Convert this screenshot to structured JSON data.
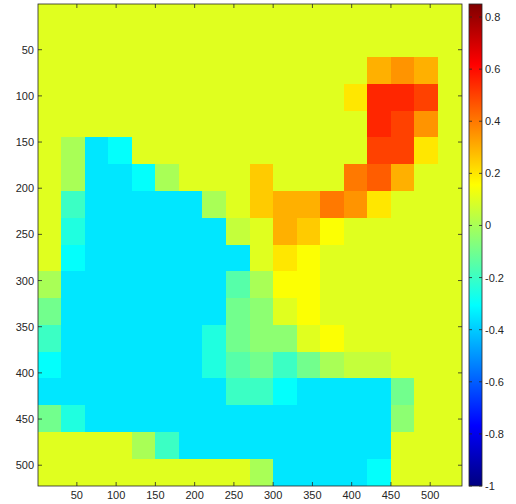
{
  "chart_data": {
    "type": "heatmap",
    "x": [
      15,
      45,
      75,
      105,
      135,
      165,
      195,
      225,
      255,
      285,
      315,
      345,
      375,
      405,
      435,
      465,
      495,
      525
    ],
    "y": [
      14.5,
      43.5,
      72.5,
      101.5,
      130.5,
      159.5,
      188.5,
      217.5,
      246.5,
      275.5,
      304.5,
      333.5,
      362.5,
      391.5,
      420.5,
      449.5,
      478.5,
      507.5
    ],
    "values": [
      [
        0.1,
        0.1,
        0.1,
        0.1,
        0.1,
        0.1,
        0.1,
        0.1,
        0.1,
        0.1,
        0.1,
        0.1,
        0.1,
        0.1,
        0.1,
        0.1,
        0.1,
        0.1
      ],
      [
        0.1,
        0.1,
        0.1,
        0.1,
        0.1,
        0.1,
        0.1,
        0.1,
        0.1,
        0.1,
        0.1,
        0.1,
        0.1,
        0.1,
        0.1,
        0.1,
        0.1,
        0.1
      ],
      [
        0.1,
        0.1,
        0.1,
        0.1,
        0.1,
        0.1,
        0.1,
        0.1,
        0.1,
        0.1,
        0.1,
        0.1,
        0.1,
        0.1,
        0.3,
        0.35,
        0.3,
        0.1
      ],
      [
        0.1,
        0.1,
        0.1,
        0.1,
        0.1,
        0.1,
        0.1,
        0.1,
        0.1,
        0.1,
        0.1,
        0.1,
        0.1,
        0.2,
        0.55,
        0.55,
        0.5,
        0.1
      ],
      [
        0.1,
        0.1,
        0.1,
        0.1,
        0.1,
        0.1,
        0.1,
        0.1,
        0.1,
        0.1,
        0.1,
        0.1,
        0.1,
        0.1,
        0.55,
        0.5,
        0.35,
        0.1
      ],
      [
        0.1,
        0.0,
        -0.35,
        -0.3,
        0.1,
        0.1,
        0.1,
        0.1,
        0.1,
        0.1,
        0.1,
        0.1,
        0.1,
        0.1,
        0.5,
        0.5,
        0.2,
        0.1
      ],
      [
        0.1,
        0.0,
        -0.35,
        -0.35,
        -0.3,
        0.0,
        0.1,
        0.1,
        0.1,
        0.25,
        0.1,
        0.1,
        0.1,
        0.4,
        0.45,
        0.3,
        0.1,
        0.1
      ],
      [
        0.1,
        -0.2,
        -0.35,
        -0.35,
        -0.35,
        -0.35,
        -0.35,
        0.0,
        0.1,
        0.25,
        0.3,
        0.3,
        0.4,
        0.35,
        0.2,
        0.1,
        0.1,
        0.1
      ],
      [
        0.1,
        -0.25,
        -0.35,
        -0.35,
        -0.35,
        -0.35,
        -0.35,
        -0.35,
        0.05,
        0.1,
        0.3,
        0.25,
        0.15,
        0.1,
        0.1,
        0.1,
        0.1,
        0.1
      ],
      [
        0.1,
        -0.3,
        -0.35,
        -0.35,
        -0.35,
        -0.35,
        -0.35,
        -0.35,
        -0.35,
        0.1,
        0.2,
        0.15,
        0.1,
        0.1,
        0.1,
        0.1,
        0.1,
        0.1
      ],
      [
        0.0,
        -0.35,
        -0.35,
        -0.35,
        -0.35,
        -0.35,
        -0.35,
        -0.35,
        -0.15,
        0.0,
        0.15,
        0.15,
        0.1,
        0.1,
        0.1,
        0.1,
        0.1,
        0.1
      ],
      [
        -0.1,
        -0.35,
        -0.35,
        -0.35,
        -0.35,
        -0.35,
        -0.35,
        -0.35,
        -0.1,
        -0.05,
        0.1,
        0.15,
        0.1,
        0.1,
        0.1,
        0.1,
        0.1,
        0.1
      ],
      [
        -0.2,
        -0.35,
        -0.35,
        -0.35,
        -0.35,
        -0.35,
        -0.35,
        -0.25,
        -0.1,
        -0.05,
        -0.05,
        0.1,
        0.15,
        0.1,
        0.1,
        0.1,
        0.1,
        0.1
      ],
      [
        -0.3,
        -0.35,
        -0.35,
        -0.35,
        -0.35,
        -0.35,
        -0.35,
        -0.25,
        -0.15,
        -0.1,
        -0.2,
        -0.1,
        0.0,
        0.05,
        0.05,
        0.1,
        0.1,
        0.1
      ],
      [
        -0.35,
        -0.35,
        -0.35,
        -0.35,
        -0.35,
        -0.35,
        -0.35,
        -0.35,
        -0.2,
        -0.2,
        -0.3,
        -0.35,
        -0.35,
        -0.35,
        -0.35,
        -0.1,
        0.1,
        0.1
      ],
      [
        -0.1,
        -0.25,
        -0.35,
        -0.35,
        -0.35,
        -0.35,
        -0.35,
        -0.35,
        -0.35,
        -0.35,
        -0.35,
        -0.35,
        -0.35,
        -0.35,
        -0.35,
        -0.05,
        0.1,
        0.1
      ],
      [
        0.1,
        0.1,
        0.1,
        0.1,
        0.0,
        -0.2,
        -0.35,
        -0.35,
        -0.35,
        -0.35,
        -0.35,
        -0.35,
        -0.35,
        -0.35,
        -0.35,
        0.1,
        0.1,
        0.1
      ],
      [
        0.1,
        0.1,
        0.1,
        0.1,
        0.1,
        0.1,
        0.1,
        0.1,
        0.1,
        0.0,
        -0.35,
        -0.35,
        -0.35,
        -0.35,
        -0.3,
        0.1,
        0.1,
        0.1
      ]
    ],
    "xlim": [
      0.5,
      540.5
    ],
    "ylim": [
      0.5,
      522.5
    ],
    "xticks": [
      50,
      100,
      150,
      200,
      250,
      300,
      350,
      400,
      450,
      500
    ],
    "yticks": [
      50,
      100,
      150,
      200,
      250,
      300,
      350,
      400,
      450,
      500
    ],
    "colorbar": {
      "range": [
        -1,
        0.85
      ],
      "ticks": [
        -1,
        -0.8,
        -0.6,
        -0.4,
        -0.2,
        0,
        0.2,
        0.4,
        0.6,
        0.8
      ]
    }
  }
}
